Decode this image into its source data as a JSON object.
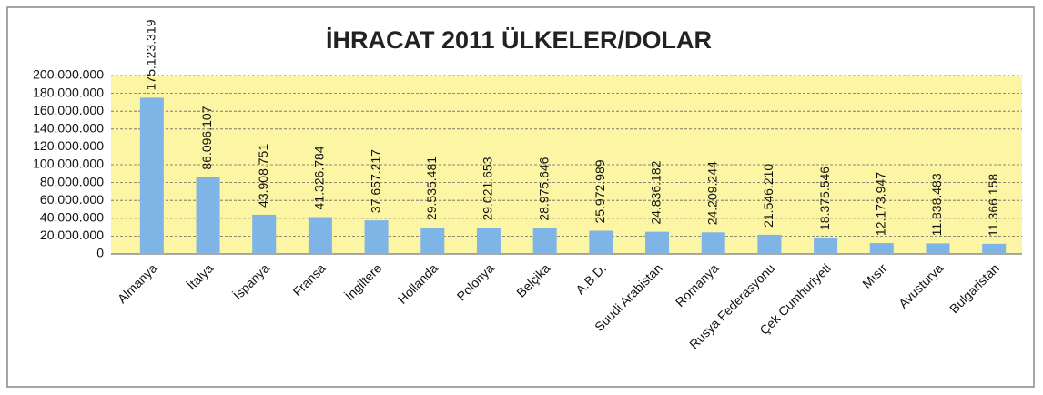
{
  "chart_data": {
    "type": "bar",
    "title": "İHRACAT 2011 ÜLKELER/DOLAR",
    "categories": [
      "Almanya",
      "İtalya",
      "İspanya",
      "Fransa",
      "İngiltere",
      "Hollanda",
      "Polonya",
      "Belçika",
      "A.B.D.",
      "Suudi Arabistan",
      "Romanya",
      "Rusya Federasyonu",
      "Çek Cumhuriyeti",
      "Mısır",
      "Avusturya",
      "Bulgaristan"
    ],
    "values": [
      175123319,
      86096107,
      43908751,
      41326784,
      37657217,
      29535481,
      29021653,
      28975646,
      25972989,
      24836182,
      24209244,
      21546210,
      18375546,
      12173947,
      11838483,
      11366158
    ],
    "value_labels": [
      "175.123.319",
      "86.096.107",
      "43.908.751",
      "41.326.784",
      "37.657.217",
      "29.535.481",
      "29.021.653",
      "28.975.646",
      "25.972.989",
      "24.836.182",
      "24.209.244",
      "21.546.210",
      "18.375.546",
      "12.173.947",
      "11.838.483",
      "11.366.158"
    ],
    "color": "#7fb4e6",
    "ylim": [
      0,
      200000000
    ],
    "yticks": [
      0,
      {
        "value": 20000000,
        "label": "20.000.000"
      },
      {
        "value": 40000000,
        "label": "40.000.000"
      },
      {
        "value": 60000000,
        "label": "60.000.000"
      },
      {
        "value": 80000000,
        "label": "80.000.000"
      },
      {
        "value": 100000000,
        "label": "100.000.000"
      },
      {
        "value": 120000000,
        "label": "120.000.000"
      },
      {
        "value": 140000000,
        "label": "140.000.000"
      },
      {
        "value": 160000000,
        "label": "160.000.000"
      },
      {
        "value": 180000000,
        "label": "180.000.000"
      },
      {
        "value": 200000000,
        "label": "200.000.000"
      }
    ],
    "grid": true
  }
}
